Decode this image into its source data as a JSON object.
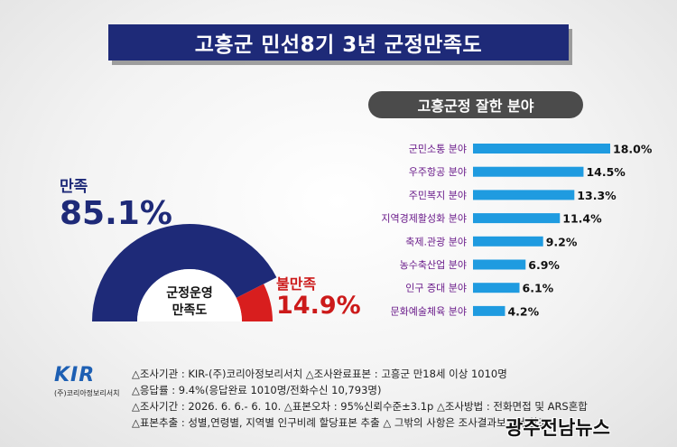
{
  "title": "고흥군 민선8기 3년 군정만족도",
  "gauge": {
    "satisfied_label": "만족",
    "satisfied_value": "85.1%",
    "unsatisfied_label": "불만족",
    "unsatisfied_value": "14.9%",
    "center_line1": "군정운영",
    "center_line2": "만족도",
    "colors": {
      "satisfied": "#1e2a78",
      "unsatisfied": "#d81e1e"
    }
  },
  "chart_data": [
    {
      "type": "pie",
      "title": "군정운영 만족도",
      "categories": [
        "만족",
        "불만족"
      ],
      "values": [
        85.1,
        14.9
      ],
      "unit": "%"
    },
    {
      "type": "bar",
      "orientation": "horizontal",
      "title": "고흥군정 잘한 분야",
      "categories": [
        "군민소통 분야",
        "우주항공 분야",
        "주민복지 분야",
        "지역경제활성화 분야",
        "축제.관광 분야",
        "농수축산업 분야",
        "인구 증대 분야",
        "문화예술체육 분야"
      ],
      "values": [
        18.0,
        14.5,
        13.3,
        11.4,
        9.2,
        6.9,
        6.1,
        4.2
      ],
      "value_labels": [
        "18.0%",
        "14.5%",
        "13.3%",
        "11.4%",
        "9.2%",
        "6.9%",
        "6.1%",
        "4.2%"
      ],
      "unit": "%",
      "bar_color": "#1f9be0",
      "label_color": "#6a1b8a"
    }
  ],
  "footer": {
    "line1": "△조사기관 : KIR-(주)코리아정보리서치 △조사완료표본 : 고흥군 만18세 이상 1010명",
    "line2": "△응답률 : 9.4%(응답완료 1010명/전화수신 10,793명)",
    "line3": "△조사기간 : 2026. 6. 6.- 6. 10. △표본오차 : 95%신뢰수준±3.1p △조사방법 :  전화면접 및 ARS혼합",
    "line4": "△표본추출 : 성별,연령별, 지역별 인구비례 할당표본 추출 △ 그밖의 사항은 조사결과보고서 참조"
  },
  "logo": {
    "main": "KIR",
    "sub": "(주)코리아정보리서치"
  },
  "watermark": "광주전남뉴스"
}
